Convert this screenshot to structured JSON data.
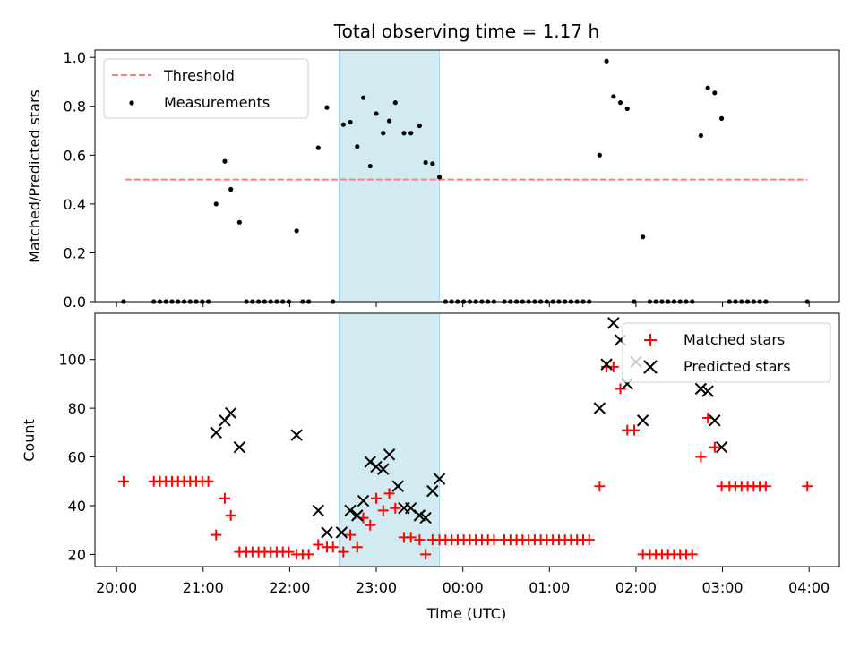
{
  "chart_data": {
    "title": "Total observing time = 1.17 h",
    "xlabel": "Time (UTC)",
    "x_ticks": [
      "20:00",
      "21:00",
      "22:00",
      "23:00",
      "00:00",
      "01:00",
      "02:00",
      "03:00",
      "04:00"
    ],
    "x_tick_hours": [
      20,
      21,
      22,
      23,
      24,
      25,
      26,
      27,
      28
    ],
    "xlim_hours": [
      19.75,
      28.35
    ],
    "shaded_span_hours": [
      22.57,
      23.73
    ],
    "shade_color": "#add8e6",
    "panels": [
      {
        "type": "scatter",
        "ylabel": "Matched/Predicted stars",
        "ylim": [
          0,
          1.03
        ],
        "y_ticks": [
          "0.0",
          "0.2",
          "0.4",
          "0.6",
          "0.8",
          "1.0"
        ],
        "y_tick_values": [
          0,
          0.2,
          0.4,
          0.6,
          0.8,
          1.0
        ],
        "legend_position": "upper-left",
        "threshold": {
          "name": "Threshold",
          "y": 0.5,
          "x_range": [
            20.1,
            27.98
          ],
          "color": "#ff7f7f"
        },
        "series": [
          {
            "name": "Measurements",
            "color": "#000000",
            "marker": "dot",
            "x": [
              20.08,
              20.43,
              20.5,
              20.57,
              20.64,
              20.71,
              20.78,
              20.85,
              20.92,
              20.99,
              21.06,
              21.15,
              21.25,
              21.32,
              21.42,
              21.5,
              21.57,
              21.64,
              21.71,
              21.78,
              21.85,
              21.92,
              21.99,
              22.08,
              22.15,
              22.22,
              22.33,
              22.43,
              22.5,
              22.62,
              22.7,
              22.78,
              22.85,
              22.93,
              23.0,
              23.08,
              23.15,
              23.22,
              23.32,
              23.4,
              23.5,
              23.57,
              23.65,
              23.73,
              23.8,
              23.87,
              23.94,
              24.01,
              24.08,
              24.15,
              24.22,
              24.29,
              24.36,
              24.48,
              24.55,
              24.62,
              24.69,
              24.76,
              24.83,
              24.9,
              24.97,
              25.04,
              25.11,
              25.18,
              25.25,
              25.32,
              25.39,
              25.46,
              25.58,
              25.66,
              25.74,
              25.82,
              25.9,
              25.98,
              26.08,
              26.16,
              26.23,
              26.3,
              26.37,
              26.44,
              26.51,
              26.58,
              26.65,
              26.75,
              26.83,
              26.91,
              26.99,
              27.08,
              27.15,
              27.22,
              27.29,
              27.36,
              27.43,
              27.5,
              27.98
            ],
            "y": [
              0,
              0,
              0,
              0,
              0,
              0,
              0,
              0,
              0,
              0,
              0,
              0.4,
              0.575,
              0.46,
              0.325,
              0,
              0,
              0,
              0,
              0,
              0,
              0,
              0,
              0.29,
              0,
              0,
              0.63,
              0.795,
              0,
              0.725,
              0.735,
              0.635,
              0.835,
              0.555,
              0.77,
              0.69,
              0.74,
              0.815,
              0.69,
              0.69,
              0.72,
              0.57,
              0.565,
              0.51,
              0,
              0,
              0,
              0,
              0,
              0,
              0,
              0,
              0,
              0,
              0,
              0,
              0,
              0,
              0,
              0,
              0,
              0,
              0,
              0,
              0,
              0,
              0,
              0,
              0.6,
              0.985,
              0.84,
              0.815,
              0.79,
              0,
              0.265,
              0,
              0,
              0,
              0,
              0,
              0,
              0,
              0,
              0.68,
              0.875,
              0.855,
              0.75,
              0,
              0,
              0,
              0,
              0,
              0,
              0,
              0
            ]
          }
        ]
      },
      {
        "type": "scatter",
        "ylabel": "Count",
        "ylim": [
          15,
          119
        ],
        "y_ticks": [
          "20",
          "40",
          "60",
          "80",
          "100"
        ],
        "y_tick_values": [
          20,
          40,
          60,
          80,
          100
        ],
        "legend_position": "upper-right",
        "series": [
          {
            "name": "Matched stars",
            "color": "#ff0000",
            "marker": "plus",
            "x": [
              20.08,
              20.43,
              20.5,
              20.57,
              20.64,
              20.71,
              20.78,
              20.85,
              20.92,
              20.99,
              21.06,
              21.15,
              21.25,
              21.32,
              21.42,
              21.5,
              21.57,
              21.64,
              21.71,
              21.78,
              21.85,
              21.92,
              21.99,
              22.08,
              22.15,
              22.22,
              22.33,
              22.43,
              22.5,
              22.62,
              22.7,
              22.78,
              22.85,
              22.93,
              23.0,
              23.08,
              23.15,
              23.22,
              23.32,
              23.4,
              23.5,
              23.57,
              23.65,
              23.73,
              23.8,
              23.87,
              23.94,
              24.01,
              24.08,
              24.15,
              24.22,
              24.29,
              24.36,
              24.48,
              24.55,
              24.62,
              24.69,
              24.76,
              24.83,
              24.9,
              24.97,
              25.04,
              25.11,
              25.18,
              25.25,
              25.32,
              25.39,
              25.46,
              25.58,
              25.66,
              25.74,
              25.82,
              25.9,
              25.98,
              26.08,
              26.16,
              26.23,
              26.3,
              26.37,
              26.44,
              26.51,
              26.58,
              26.65,
              26.75,
              26.83,
              26.91,
              26.99,
              27.08,
              27.15,
              27.22,
              27.29,
              27.36,
              27.43,
              27.5,
              27.98
            ],
            "y": [
              50,
              50,
              50,
              50,
              50,
              50,
              50,
              50,
              50,
              50,
              50,
              28,
              43,
              36,
              21,
              21,
              21,
              21,
              21,
              21,
              21,
              21,
              21,
              20,
              20,
              20,
              24,
              23,
              23,
              21,
              28,
              23,
              35,
              32,
              43,
              38,
              45,
              39,
              27,
              27,
              26,
              20,
              26,
              26,
              26,
              26,
              26,
              26,
              26,
              26,
              26,
              26,
              26,
              26,
              26,
              26,
              26,
              26,
              26,
              26,
              26,
              26,
              26,
              26,
              26,
              26,
              26,
              26,
              48,
              97,
              97,
              88,
              71,
              71,
              20,
              20,
              20,
              20,
              20,
              20,
              20,
              20,
              20,
              60,
              76,
              64,
              48,
              48,
              48,
              48,
              48,
              48,
              48,
              48,
              48
            ]
          },
          {
            "name": "Predicted stars",
            "color": "#000000",
            "marker": "x",
            "x": [
              21.15,
              21.25,
              21.32,
              21.42,
              22.08,
              22.33,
              22.43,
              22.6,
              22.7,
              22.78,
              22.85,
              22.93,
              23.0,
              23.08,
              23.15,
              23.25,
              23.32,
              23.4,
              23.5,
              23.57,
              23.65,
              23.73,
              25.58,
              25.66,
              25.74,
              25.82,
              25.9,
              26.0,
              26.08,
              26.75,
              26.83,
              26.91,
              26.99
            ],
            "y": [
              70,
              75,
              78,
              64,
              69,
              38,
              29,
              29,
              38,
              36,
              42,
              58,
              56,
              55,
              61,
              48,
              39,
              39,
              36,
              35,
              46,
              51,
              80,
              98,
              115,
              108,
              90,
              99,
              75,
              88,
              87,
              75,
              64
            ]
          }
        ]
      }
    ]
  }
}
